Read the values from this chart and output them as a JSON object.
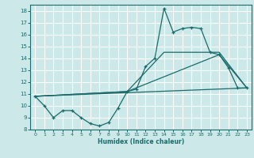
{
  "xlabel": "Humidex (Indice chaleur)",
  "bg_color": "#cce8e8",
  "line_color": "#1a6b6b",
  "grid_color": "#ffffff",
  "ylim": [
    8,
    18.5
  ],
  "xlim": [
    -0.5,
    23.5
  ],
  "yticks": [
    8,
    9,
    10,
    11,
    12,
    13,
    14,
    15,
    16,
    17,
    18
  ],
  "xticks": [
    0,
    1,
    2,
    3,
    4,
    5,
    6,
    7,
    8,
    9,
    10,
    11,
    12,
    13,
    14,
    15,
    16,
    17,
    18,
    19,
    20,
    21,
    22,
    23
  ],
  "series1_x": [
    0,
    1,
    2,
    3,
    4,
    5,
    6,
    7,
    8,
    9,
    10,
    11,
    12,
    13,
    14,
    15,
    16,
    17,
    18,
    19,
    20,
    21,
    22,
    23
  ],
  "series1_y": [
    10.8,
    10.0,
    9.0,
    9.6,
    9.6,
    9.0,
    8.5,
    8.3,
    8.6,
    9.8,
    11.2,
    11.4,
    13.3,
    14.0,
    18.2,
    16.2,
    16.5,
    16.6,
    16.5,
    14.5,
    14.3,
    13.2,
    11.5,
    11.5
  ],
  "line2_x": [
    0,
    23
  ],
  "line2_y": [
    10.8,
    11.5
  ],
  "line3_x": [
    0,
    10,
    20,
    23
  ],
  "line3_y": [
    10.8,
    11.2,
    14.3,
    11.5
  ],
  "line4_x": [
    0,
    10,
    14,
    20,
    23
  ],
  "line4_y": [
    10.8,
    11.2,
    14.5,
    14.5,
    11.5
  ]
}
